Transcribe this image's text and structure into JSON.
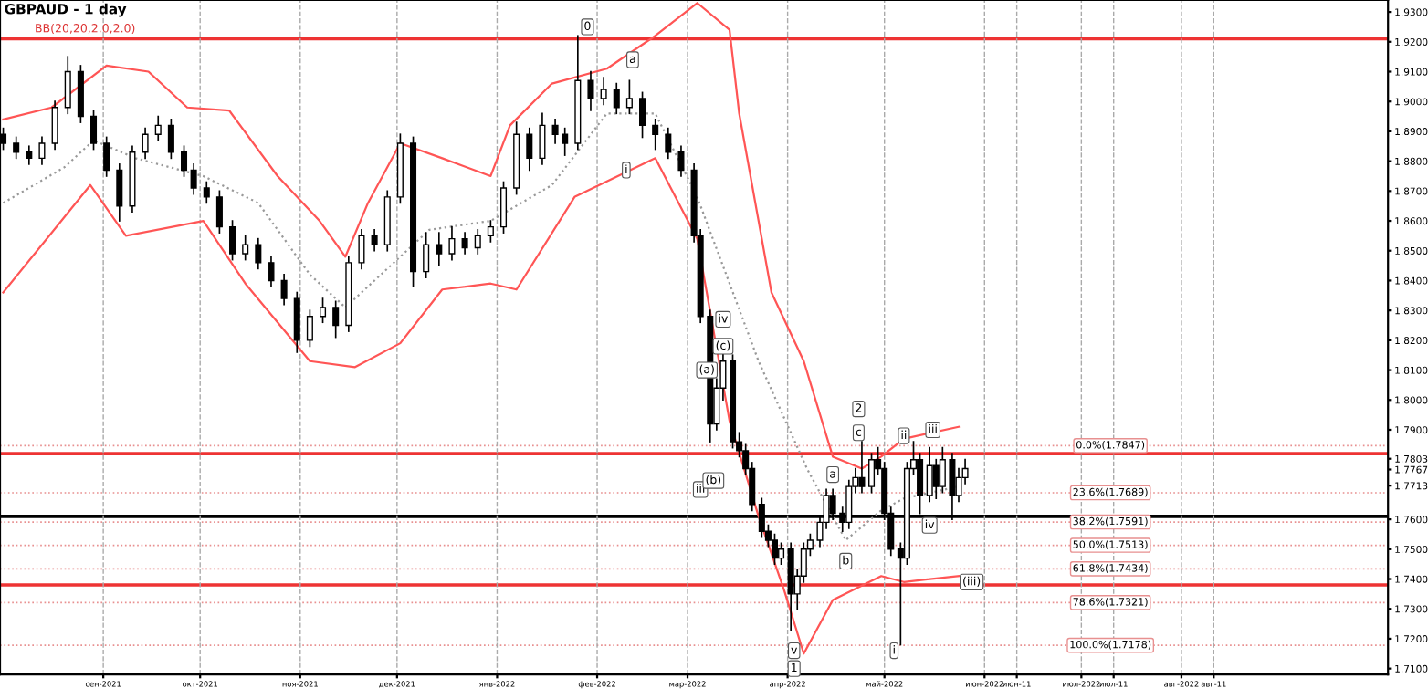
{
  "chart_data": {
    "type": "candlestick",
    "title": "GBPAUD - 1 day",
    "subtitle": "BB(20,20,2.0,2.0)",
    "x": [
      "2021-08-01",
      "2021-08-05",
      "2021-08-09",
      "2021-08-13",
      "2021-08-17",
      "2021-08-21",
      "2021-08-25",
      "2021-08-29",
      "2021-09-02",
      "2021-09-06",
      "2021-09-10",
      "2021-09-14",
      "2021-09-18",
      "2021-09-22",
      "2021-09-26",
      "2021-09-29",
      "2021-10-03",
      "2021-10-07",
      "2021-10-11",
      "2021-10-15",
      "2021-10-19",
      "2021-10-23",
      "2021-10-27",
      "2021-10-31",
      "2021-11-04",
      "2021-11-08",
      "2021-11-12",
      "2021-11-16",
      "2021-11-20",
      "2021-11-24",
      "2021-11-28",
      "2021-12-02",
      "2021-12-06",
      "2021-12-10",
      "2021-12-14",
      "2021-12-18",
      "2021-12-22",
      "2021-12-26",
      "2021-12-30",
      "2022-01-03",
      "2022-01-07",
      "2022-01-11",
      "2022-01-15",
      "2022-01-19",
      "2022-01-22",
      "2022-01-26",
      "2022-01-30",
      "2022-02-03",
      "2022-02-07",
      "2022-02-11",
      "2022-02-15",
      "2022-02-19",
      "2022-02-23",
      "2022-02-27",
      "2022-03-03",
      "2022-03-05",
      "2022-03-08",
      "2022-03-10",
      "2022-03-12",
      "2022-03-15",
      "2022-03-17",
      "2022-03-19",
      "2022-03-21",
      "2022-03-24",
      "2022-03-26",
      "2022-03-28",
      "2022-03-30",
      "2022-04-02",
      "2022-04-04",
      "2022-04-06",
      "2022-04-08",
      "2022-04-11",
      "2022-04-13",
      "2022-04-15",
      "2022-04-18",
      "2022-04-20",
      "2022-04-22",
      "2022-04-24",
      "2022-04-27",
      "2022-04-29",
      "2022-05-01",
      "2022-05-03",
      "2022-05-06",
      "2022-05-08",
      "2022-05-10",
      "2022-05-12",
      "2022-05-15",
      "2022-05-17",
      "2022-05-19",
      "2022-05-22",
      "2022-05-24",
      "2022-05-26"
    ],
    "ohlc": [
      [
        1.889,
        1.891,
        1.884,
        1.886
      ],
      [
        1.886,
        1.888,
        1.881,
        1.883
      ],
      [
        1.883,
        1.885,
        1.879,
        1.881
      ],
      [
        1.881,
        1.888,
        1.879,
        1.886
      ],
      [
        1.886,
        1.9,
        1.884,
        1.898
      ],
      [
        1.898,
        1.915,
        1.896,
        1.91
      ],
      [
        1.91,
        1.912,
        1.893,
        1.895
      ],
      [
        1.895,
        1.897,
        1.884,
        1.886
      ],
      [
        1.886,
        1.888,
        1.875,
        1.877
      ],
      [
        1.877,
        1.879,
        1.86,
        1.865
      ],
      [
        1.865,
        1.885,
        1.863,
        1.883
      ],
      [
        1.883,
        1.891,
        1.881,
        1.889
      ],
      [
        1.889,
        1.895,
        1.887,
        1.892
      ],
      [
        1.892,
        1.894,
        1.881,
        1.883
      ],
      [
        1.883,
        1.885,
        1.875,
        1.877
      ],
      [
        1.877,
        1.879,
        1.869,
        1.871
      ],
      [
        1.871,
        1.873,
        1.866,
        1.868
      ],
      [
        1.868,
        1.87,
        1.856,
        1.858
      ],
      [
        1.858,
        1.86,
        1.847,
        1.849
      ],
      [
        1.849,
        1.855,
        1.847,
        1.852
      ],
      [
        1.852,
        1.854,
        1.844,
        1.846
      ],
      [
        1.846,
        1.848,
        1.838,
        1.84
      ],
      [
        1.84,
        1.842,
        1.832,
        1.834
      ],
      [
        1.834,
        1.836,
        1.816,
        1.82
      ],
      [
        1.82,
        1.83,
        1.818,
        1.828
      ],
      [
        1.828,
        1.834,
        1.826,
        1.831
      ],
      [
        1.831,
        1.833,
        1.821,
        1.825
      ],
      [
        1.825,
        1.848,
        1.823,
        1.846
      ],
      [
        1.846,
        1.857,
        1.844,
        1.855
      ],
      [
        1.855,
        1.857,
        1.85,
        1.852
      ],
      [
        1.852,
        1.87,
        1.85,
        1.868
      ],
      [
        1.868,
        1.889,
        1.866,
        1.886
      ],
      [
        1.886,
        1.888,
        1.838,
        1.843
      ],
      [
        1.843,
        1.856,
        1.841,
        1.852
      ],
      [
        1.852,
        1.856,
        1.845,
        1.849
      ],
      [
        1.849,
        1.858,
        1.847,
        1.854
      ],
      [
        1.854,
        1.856,
        1.849,
        1.851
      ],
      [
        1.851,
        1.857,
        1.849,
        1.855
      ],
      [
        1.855,
        1.86,
        1.853,
        1.858
      ],
      [
        1.858,
        1.873,
        1.856,
        1.871
      ],
      [
        1.871,
        1.893,
        1.869,
        1.889
      ],
      [
        1.889,
        1.891,
        1.877,
        1.881
      ],
      [
        1.881,
        1.896,
        1.879,
        1.892
      ],
      [
        1.892,
        1.894,
        1.886,
        1.889
      ],
      [
        1.889,
        1.891,
        1.882,
        1.886
      ],
      [
        1.886,
        1.922,
        1.884,
        1.907
      ],
      [
        1.907,
        1.91,
        1.897,
        1.901
      ],
      [
        1.901,
        1.908,
        1.899,
        1.904
      ],
      [
        1.904,
        1.906,
        1.896,
        1.898
      ],
      [
        1.898,
        1.907,
        1.896,
        1.901
      ],
      [
        1.901,
        1.903,
        1.888,
        1.892
      ],
      [
        1.892,
        1.894,
        1.884,
        1.889
      ],
      [
        1.889,
        1.891,
        1.881,
        1.883
      ],
      [
        1.883,
        1.885,
        1.875,
        1.877
      ],
      [
        1.877,
        1.879,
        1.853,
        1.855
      ],
      [
        1.855,
        1.857,
        1.826,
        1.828
      ],
      [
        1.828,
        1.83,
        1.786,
        1.792
      ],
      [
        1.792,
        1.807,
        1.79,
        1.804
      ],
      [
        1.804,
        1.816,
        1.8,
        1.813
      ],
      [
        1.813,
        1.815,
        1.784,
        1.786
      ],
      [
        1.786,
        1.789,
        1.781,
        1.783
      ],
      [
        1.783,
        1.785,
        1.775,
        1.777
      ],
      [
        1.777,
        1.779,
        1.763,
        1.765
      ],
      [
        1.765,
        1.767,
        1.754,
        1.756
      ],
      [
        1.756,
        1.758,
        1.751,
        1.753
      ],
      [
        1.753,
        1.755,
        1.745,
        1.747
      ],
      [
        1.747,
        1.752,
        1.745,
        1.75
      ],
      [
        1.75,
        1.752,
        1.723,
        1.735
      ],
      [
        1.735,
        1.743,
        1.73,
        1.741
      ],
      [
        1.741,
        1.752,
        1.739,
        1.75
      ],
      [
        1.75,
        1.755,
        1.748,
        1.753
      ],
      [
        1.753,
        1.761,
        1.751,
        1.759
      ],
      [
        1.759,
        1.77,
        1.757,
        1.768
      ],
      [
        1.768,
        1.77,
        1.76,
        1.762
      ],
      [
        1.762,
        1.764,
        1.756,
        1.759
      ],
      [
        1.759,
        1.773,
        1.757,
        1.771
      ],
      [
        1.771,
        1.777,
        1.769,
        1.774
      ],
      [
        1.774,
        1.786,
        1.769,
        1.771
      ],
      [
        1.771,
        1.782,
        1.769,
        1.78
      ],
      [
        1.78,
        1.784,
        1.775,
        1.777
      ],
      [
        1.777,
        1.779,
        1.76,
        1.762
      ],
      [
        1.762,
        1.764,
        1.748,
        1.75
      ],
      [
        1.75,
        1.752,
        1.718,
        1.747
      ],
      [
        1.747,
        1.779,
        1.745,
        1.777
      ],
      [
        1.777,
        1.786,
        1.775,
        1.78
      ],
      [
        1.78,
        1.782,
        1.762,
        1.768
      ],
      [
        1.768,
        1.784,
        1.766,
        1.778
      ],
      [
        1.778,
        1.78,
        1.767,
        1.771
      ],
      [
        1.771,
        1.784,
        1.769,
        1.78
      ],
      [
        1.78,
        1.782,
        1.76,
        1.768
      ],
      [
        1.768,
        1.777,
        1.766,
        1.774
      ],
      [
        1.774,
        1.78,
        1.772,
        1.777
      ]
    ],
    "series": [
      {
        "type": "line",
        "color": "#ff5555",
        "line_style": "solid",
        "x": [
          "2021-08-01",
          "2021-08-16",
          "2021-09-02",
          "2021-09-15",
          "2021-09-27",
          "2021-10-10",
          "2021-10-25",
          "2021-11-07",
          "2021-11-15",
          "2021-11-22",
          "2021-12-02",
          "2021-12-15",
          "2021-12-30",
          "2022-01-05",
          "2022-01-18",
          "2022-02-04",
          "2022-02-19",
          "2022-03-04",
          "2022-03-14",
          "2022-03-17",
          "2022-03-27",
          "2022-04-06",
          "2022-04-15",
          "2022-04-24",
          "2022-04-30",
          "2022-05-07",
          "2022-05-24"
        ],
        "values": [
          1.894,
          1.898,
          1.912,
          1.91,
          1.898,
          1.897,
          1.875,
          1.86,
          1.848,
          1.866,
          1.886,
          1.881,
          1.875,
          1.892,
          1.906,
          1.911,
          1.922,
          1.933,
          1.924,
          1.896,
          1.836,
          1.813,
          1.781,
          1.777,
          1.781,
          1.787,
          1.791
        ]
      },
      {
        "type": "line",
        "color": "#999999",
        "line_style": "dotted",
        "x": [
          "2021-08-01",
          "2021-08-20",
          "2021-08-29",
          "2021-09-11",
          "2021-10-02",
          "2021-10-19",
          "2021-11-04",
          "2021-11-15",
          "2021-11-26",
          "2021-12-11",
          "2021-12-30",
          "2022-01-18",
          "2022-02-04",
          "2022-02-19",
          "2022-03-04",
          "2022-03-23",
          "2022-04-07",
          "2022-04-19",
          "2022-04-30",
          "2022-05-07",
          "2022-05-24"
        ],
        "values": [
          1.866,
          1.878,
          1.887,
          1.881,
          1.875,
          1.866,
          1.842,
          1.831,
          1.842,
          1.857,
          1.86,
          1.872,
          1.896,
          1.896,
          1.868,
          1.813,
          1.777,
          1.753,
          1.763,
          1.767,
          1.771
        ]
      },
      {
        "type": "line",
        "color": "#ff5555",
        "line_style": "solid",
        "x": [
          "2021-08-01",
          "2021-08-28",
          "2021-09-08",
          "2021-10-02",
          "2021-10-15",
          "2021-11-04",
          "2021-11-18",
          "2021-12-02",
          "2021-12-15",
          "2021-12-30",
          "2022-01-07",
          "2022-01-25",
          "2022-02-19",
          "2022-03-04",
          "2022-03-14",
          "2022-03-23",
          "2022-03-31",
          "2022-04-06",
          "2022-04-15",
          "2022-04-30",
          "2022-05-07",
          "2022-05-24"
        ],
        "values": [
          1.836,
          1.872,
          1.855,
          1.86,
          1.839,
          1.813,
          1.811,
          1.819,
          1.837,
          1.839,
          1.837,
          1.868,
          1.881,
          1.854,
          1.793,
          1.761,
          1.736,
          1.715,
          1.733,
          1.741,
          1.739,
          1.741
        ]
      }
    ],
    "ref_lines": [
      {
        "axis": "y",
        "value": 1.921,
        "color": "#ee3333"
      },
      {
        "axis": "y",
        "value": 1.782,
        "color": "#ee3333"
      },
      {
        "axis": "y",
        "value": 1.761,
        "color": "#000000"
      },
      {
        "axis": "y",
        "value": 1.738,
        "color": "#ee3333"
      },
      {
        "axis": "y",
        "value": 1.7847,
        "label": "0.0%(1.7847)",
        "color": "#e89090",
        "line_style": "dotted"
      },
      {
        "axis": "y",
        "value": 1.7689,
        "label": "23.6%(1.7689)",
        "color": "#e89090",
        "line_style": "dotted"
      },
      {
        "axis": "y",
        "value": 1.7591,
        "label": "38.2%(1.7591)",
        "color": "#e89090",
        "line_style": "dotted"
      },
      {
        "axis": "y",
        "value": 1.7513,
        "label": "50.0%(1.7513)",
        "color": "#e89090",
        "line_style": "dotted"
      },
      {
        "axis": "y",
        "value": 1.7434,
        "label": "61.8%(1.7434)",
        "color": "#e89090",
        "line_style": "dotted"
      },
      {
        "axis": "y",
        "value": 1.7321,
        "label": "78.6%(1.7321)",
        "color": "#e89090",
        "line_style": "dotted"
      },
      {
        "axis": "y",
        "value": 1.7178,
        "label": "100.0%(1.7178)",
        "color": "#e89090",
        "line_style": "dotted"
      }
    ],
    "annotations": [
      {
        "text": "0",
        "x": "2022-01-29",
        "y": 1.925
      },
      {
        "text": "a",
        "x": "2022-02-12",
        "y": 1.914
      },
      {
        "text": "i",
        "x": "2022-02-10",
        "y": 1.877
      },
      {
        "text": "iv",
        "x": "2022-03-12",
        "y": 1.827
      },
      {
        "text": "(c)",
        "x": "2022-03-12",
        "y": 1.818
      },
      {
        "text": "(a)",
        "x": "2022-03-07",
        "y": 1.81
      },
      {
        "text": "iii",
        "x": "2022-03-05",
        "y": 1.77
      },
      {
        "text": "(b)",
        "x": "2022-03-09",
        "y": 1.773
      },
      {
        "text": "v",
        "x": "2022-04-03",
        "y": 1.716
      },
      {
        "text": "1",
        "x": "2022-04-03",
        "y": 1.71
      },
      {
        "text": "a",
        "x": "2022-04-15",
        "y": 1.775
      },
      {
        "text": "b",
        "x": "2022-04-19",
        "y": 1.746
      },
      {
        "text": "2",
        "x": "2022-04-23",
        "y": 1.797
      },
      {
        "text": "c",
        "x": "2022-04-23",
        "y": 1.789
      },
      {
        "text": "ii",
        "x": "2022-05-07",
        "y": 1.788
      },
      {
        "text": "iii",
        "x": "2022-05-16",
        "y": 1.79
      },
      {
        "text": "iv",
        "x": "2022-05-15",
        "y": 1.758
      },
      {
        "text": "i",
        "x": "2022-05-04",
        "y": 1.716
      },
      {
        "text": "(iii)",
        "x": "2022-05-28",
        "y": 1.739
      }
    ],
    "xlim": [
      "2021-07-31",
      "2022-10-04"
    ],
    "xticks": [
      {
        "value": "2021-09-01",
        "label": "сен-2021"
      },
      {
        "value": "2021-10-01",
        "label": "окт-2021"
      },
      {
        "value": "2021-11-01",
        "label": "ноя-2021"
      },
      {
        "value": "2021-12-01",
        "label": "дек-2021"
      },
      {
        "value": "2022-01-01",
        "label": "янв-2022"
      },
      {
        "value": "2022-02-01",
        "label": "фев-2022"
      },
      {
        "value": "2022-03-01",
        "label": "мар-2022"
      },
      {
        "value": "2022-04-01",
        "label": "апр-2022"
      },
      {
        "value": "2022-05-01",
        "label": "май-2022"
      },
      {
        "value": "2022-06-01",
        "label": "июн-2022"
      },
      {
        "value": "2022-06-11",
        "label": "июн-11"
      },
      {
        "value": "2022-07-01",
        "label": "июл-2022"
      },
      {
        "value": "2022-07-11",
        "label": "июл-11"
      },
      {
        "value": "2022-08-01",
        "label": "авг-2022"
      },
      {
        "value": "2022-08-11",
        "label": "авг-11"
      }
    ],
    "ylim": [
      1.708,
      1.934
    ],
    "yticks": [
      {
        "value": 1.93,
        "label": "1.9300"
      },
      {
        "value": 1.92,
        "label": "1.9200"
      },
      {
        "value": 1.91,
        "label": "1.9100"
      },
      {
        "value": 1.9,
        "label": "1.9000"
      },
      {
        "value": 1.89,
        "label": "1.8900"
      },
      {
        "value": 1.88,
        "label": "1.8800"
      },
      {
        "value": 1.87,
        "label": "1.8700"
      },
      {
        "value": 1.86,
        "label": "1.8600"
      },
      {
        "value": 1.85,
        "label": "1.8500"
      },
      {
        "value": 1.84,
        "label": "1.8400"
      },
      {
        "value": 1.83,
        "label": "1.8300"
      },
      {
        "value": 1.82,
        "label": "1.8200"
      },
      {
        "value": 1.81,
        "label": "1.8100"
      },
      {
        "value": 1.8,
        "label": "1.8000"
      },
      {
        "value": 1.79,
        "label": "1.7900"
      },
      1.7803,
      1.7767,
      1.7713,
      {
        "value": 1.76,
        "label": "1.7600"
      },
      {
        "value": 1.75,
        "label": "1.7500"
      },
      {
        "value": 1.74,
        "label": "1.7400"
      },
      {
        "value": 1.73,
        "label": "1.7300"
      },
      {
        "value": 1.72,
        "label": "1.7200"
      },
      {
        "value": 1.71,
        "label": "1.7100"
      }
    ],
    "grid": "x"
  }
}
